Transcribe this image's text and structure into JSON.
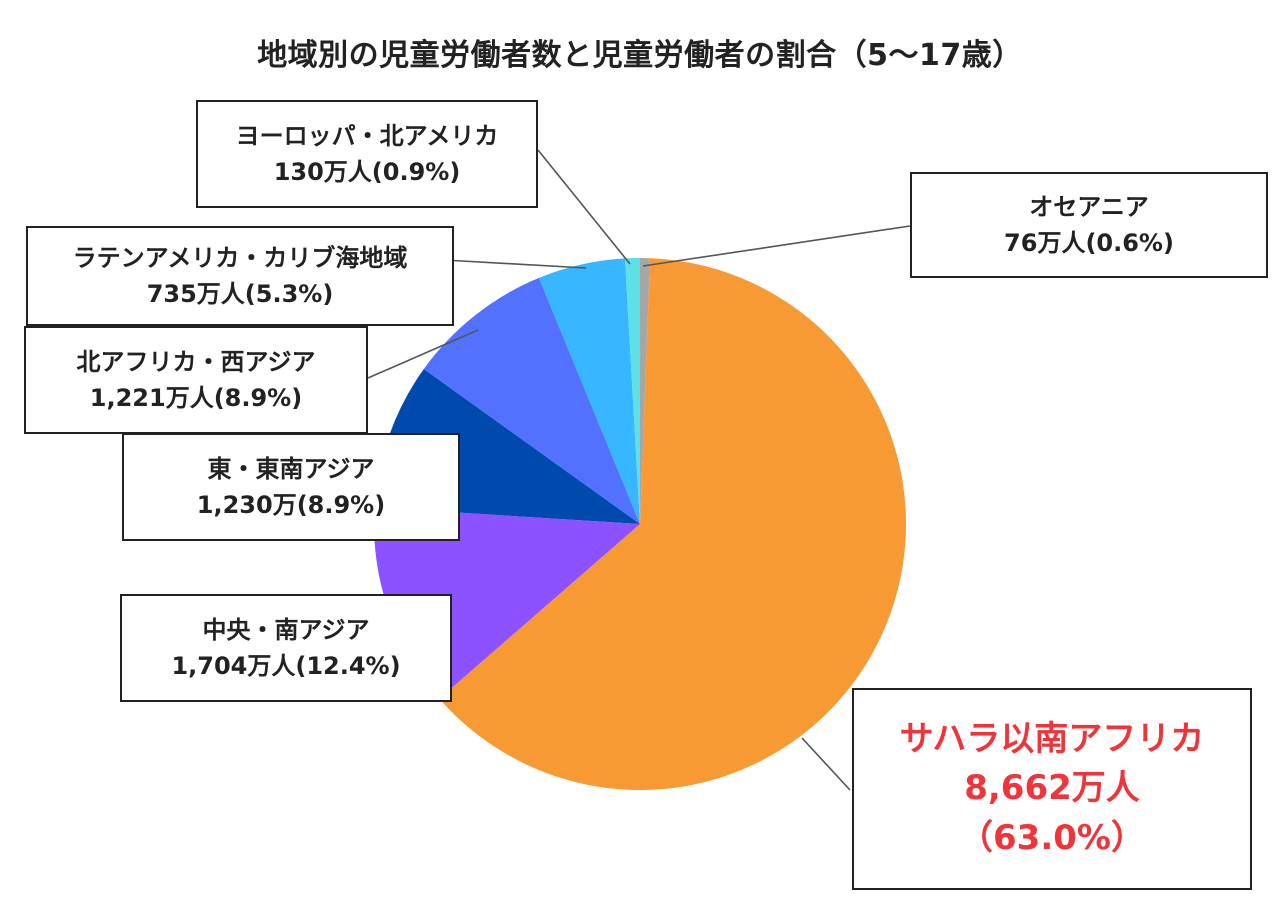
{
  "chart_data": {
    "type": "pie",
    "title": "地域別の児童労働者数と児童労働者の割合（5〜17歳）",
    "slices": [
      {
        "name": "オセアニア",
        "value": 0.6,
        "color": "#a6a6a6",
        "label_lines": [
          "オセアニア",
          "76万人(0.6%)"
        ]
      },
      {
        "name": "サハラ以南アフリカ",
        "value": 63.0,
        "color": "#f79a33",
        "label_lines": [
          "サハラ以南アフリカ",
          "8,662万人",
          "（63.0%）"
        ],
        "highlight": true
      },
      {
        "name": "中央・南アジア",
        "value": 12.4,
        "color": "#8c52ff",
        "label_lines": [
          "中央・南アジア",
          "1,704万人(12.4%)"
        ]
      },
      {
        "name": "東・東南アジア",
        "value": 8.9,
        "color": "#004aad",
        "label_lines": [
          "東・東南アジア",
          "1,230万(8.9%)"
        ]
      },
      {
        "name": "北アフリカ・西アジア",
        "value": 8.9,
        "color": "#5271ff",
        "label_lines": [
          "北アフリカ・西アジア",
          "1,221万人(8.9%)"
        ]
      },
      {
        "name": "ラテンアメリカ・カリブ海地域",
        "value": 5.3,
        "color": "#38b6ff",
        "label_lines": [
          "ラテンアメリカ・カリブ海地域",
          "735万人(5.3%)"
        ]
      },
      {
        "name": "ヨーロッパ・北アメリカ",
        "value": 0.9,
        "color": "#5ce1e6",
        "label_lines": [
          "ヨーロッパ・北アメリカ",
          "130万人(0.9%)"
        ]
      }
    ]
  }
}
